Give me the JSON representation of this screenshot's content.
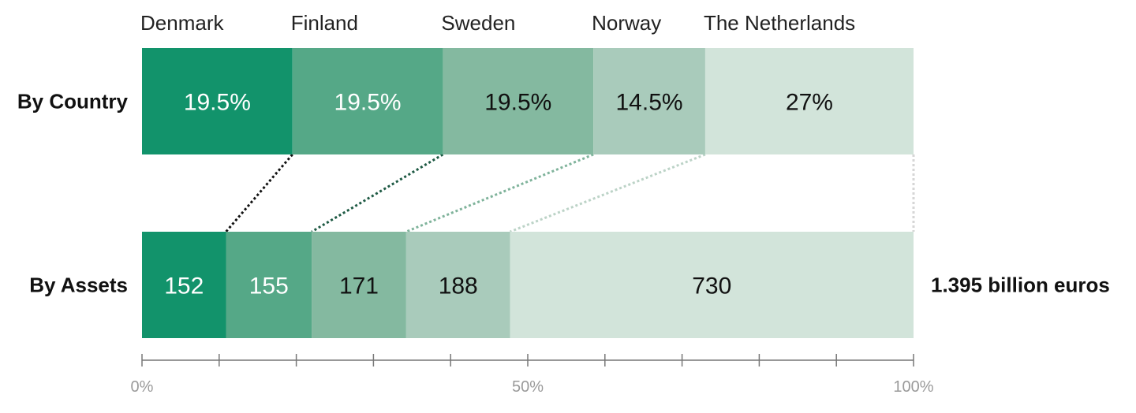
{
  "chart_data": {
    "type": "bar",
    "stacked": true,
    "orientation": "horizontal",
    "categories": [
      "Denmark",
      "Finland",
      "Sweden",
      "Norway",
      "The Netherlands"
    ],
    "rows": [
      {
        "label": "By Country",
        "values": [
          19.5,
          19.5,
          19.5,
          14.5,
          27
        ],
        "value_labels": [
          "19.5%",
          "19.5%",
          "19.5%",
          "14.5%",
          "27%"
        ]
      },
      {
        "label": "By Assets",
        "values": [
          152,
          155,
          171,
          188,
          730
        ],
        "value_labels": [
          "152",
          "155",
          "171",
          "188",
          "730"
        ],
        "total_label": "1.395 billion euros"
      }
    ],
    "colors": [
      "#12936b",
      "#55a887",
      "#84b9a0",
      "#a9cbbb",
      "#d2e4da"
    ],
    "label_colors": [
      "#ffffff",
      "#ffffff",
      "#111111",
      "#111111",
      "#111111"
    ],
    "connector_colors": [
      "#111111",
      "#1e5a44",
      "#7fb39b",
      "#bcd3c7",
      "#d6d6d6"
    ],
    "x_axis": {
      "range": [
        0,
        100
      ],
      "ticks": [
        0,
        10,
        20,
        30,
        40,
        50,
        60,
        70,
        80,
        90,
        100
      ],
      "tick_labels": [
        {
          "value": 0,
          "label": "0%"
        },
        {
          "value": 50,
          "label": "50%"
        },
        {
          "value": 100,
          "label": "100%"
        }
      ]
    }
  }
}
